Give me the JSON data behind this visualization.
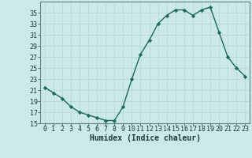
{
  "x": [
    0,
    1,
    2,
    3,
    4,
    5,
    6,
    7,
    8,
    9,
    10,
    11,
    12,
    13,
    14,
    15,
    16,
    17,
    18,
    19,
    20,
    21,
    22,
    23
  ],
  "y": [
    21.5,
    20.5,
    19.5,
    18.0,
    17.0,
    16.5,
    16.0,
    15.5,
    15.5,
    18.0,
    23.0,
    27.5,
    30.0,
    33.0,
    34.5,
    35.5,
    35.5,
    34.5,
    35.5,
    36.0,
    31.5,
    27.0,
    25.0,
    23.5
  ],
  "xlabel": "Humidex (Indice chaleur)",
  "ylim": [
    15,
    37
  ],
  "xlim": [
    -0.5,
    23.5
  ],
  "yticks": [
    15,
    17,
    19,
    21,
    23,
    25,
    27,
    29,
    31,
    33,
    35
  ],
  "xticks": [
    0,
    1,
    2,
    3,
    4,
    5,
    6,
    7,
    8,
    9,
    10,
    11,
    12,
    13,
    14,
    15,
    16,
    17,
    18,
    19,
    20,
    21,
    22,
    23
  ],
  "line_color": "#1a6b5e",
  "bg_color": "#cce8e8",
  "grid_color": "#b8d8d8",
  "marker": "D",
  "marker_size": 2.2,
  "linewidth": 1.0,
  "tick_fontsize": 6.0,
  "xlabel_fontsize": 7.0
}
